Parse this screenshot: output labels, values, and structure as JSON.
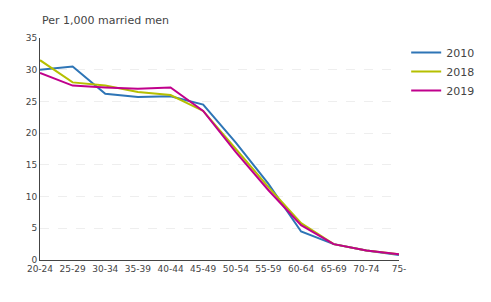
{
  "chart_data": {
    "type": "line",
    "ylabel": "Per 1,000 married men",
    "categories": [
      "20-24",
      "25-29",
      "30-34",
      "35-39",
      "40-44",
      "45-49",
      "50-54",
      "55-59",
      "60-64",
      "65-69",
      "70-74",
      "75-"
    ],
    "series": [
      {
        "name": "2010",
        "color": "#2e75b6",
        "values": [
          30.0,
          30.5,
          26.2,
          25.7,
          25.8,
          24.5,
          18.5,
          12.0,
          4.5,
          2.5,
          1.5,
          0.8
        ]
      },
      {
        "name": "2018",
        "color": "#b5bf00",
        "values": [
          31.5,
          28.0,
          27.5,
          26.5,
          26.0,
          23.5,
          17.5,
          11.5,
          5.8,
          2.5,
          1.5,
          0.9
        ]
      },
      {
        "name": "2019",
        "color": "#c0008c",
        "values": [
          29.5,
          27.5,
          27.2,
          27.0,
          27.2,
          23.5,
          17.0,
          11.0,
          5.5,
          2.5,
          1.5,
          0.9
        ]
      }
    ],
    "ylim": [
      0,
      35
    ],
    "yticks": [
      0,
      5,
      10,
      15,
      20,
      25,
      30,
      35
    ],
    "grid": true,
    "legend": "right"
  }
}
